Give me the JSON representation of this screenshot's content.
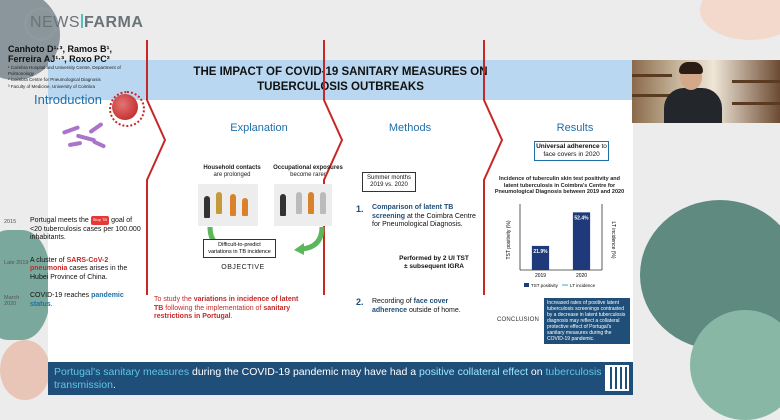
{
  "logo": {
    "part1": "NEWS",
    "part2": "FARMA"
  },
  "poster": {
    "title_line1": "THE IMPACT OF COVID-19 SANITARY MEASURES ON",
    "title_line2": "TUBERCULOSIS OUTBREAKS",
    "authors": {
      "line1": "Canhoto D¹·³, Ramos B¹,",
      "line2": "Ferreira AJ¹·³, Roxo PC²",
      "aff1": "¹ Coimbra Hospital and University Centre, Department of Pulmonology",
      "aff2": "² Coimbra Centre for Pneumological Diagnosis",
      "aff3": "³ Faculty of Medicine, University of Coimbra"
    },
    "introduction": {
      "title": "Introduction",
      "items": [
        {
          "year": "2015",
          "pre": "Portugal meets the",
          "badge": "Stop TB",
          "post": "goal of <20 tuberculosis cases per 100.000 inhabitants."
        },
        {
          "year": "Late 2019",
          "pre": "A cluster of",
          "highlight": "SARS-CoV-2 pneumonia",
          "post": "cases arises in the Hubei Province of China."
        },
        {
          "year": "March 2020",
          "pre": "COVID-19 reaches",
          "highlight": "pandemic status",
          "post": "."
        }
      ]
    },
    "explanation": {
      "title": "Explanation",
      "label_left_1": "Household contacts",
      "label_left_2": "are prolonged",
      "label_right_1": "Occupational exposures",
      "label_right_2": "become rarer",
      "diff_box_1": "Difficult-to-predict",
      "diff_box_2": "variations in TB incidence",
      "objective": "OBJECTIVE",
      "obj_pre": "To study the ",
      "obj_hl1": "variations in incidence of latent TB",
      "obj_mid": " following the implementation of ",
      "obj_hl2": "sanitary restrictions in Portugal",
      "obj_end": "."
    },
    "methods": {
      "title": "Methods",
      "box_1": "Summer months",
      "box_2": "2019 vs. 2020",
      "item1_num": "1.",
      "item1_hl": "Comparison of latent TB screening",
      "item1_rest": " at the Coimbra Centre for Pneumological Diagnosis.",
      "item1_sub_1": "Performed by 2 UI TST",
      "item1_sub_2": "± subsequent IGRA",
      "item2_num": "2.",
      "item2_pre": "Recording of ",
      "item2_hl": "face cover adherence",
      "item2_rest": " outside of home."
    },
    "results": {
      "title": "Results",
      "box_hl": "Universal adherence",
      "box_rest": " to face covers in 2020",
      "caption": "Incidence of tuberculin skin test positivity and latent tuberculosis in Coimbra's Centre for Pneumological Diagnosis between 2019 and 2020",
      "conclusion_label": "CONCLUSION",
      "conclusion_text": "Increased rates of positive latent tuberculosis screenings contrasted by a decrease in latent tuberculosis diagnosis may reflect a collateral protective effect of Portugal's sanitary measures during the COVID-19 pandemic."
    },
    "bottom": {
      "s1": "Portugal's sanitary measures",
      "s2": " during the COVID-19 pandemic may have had a ",
      "s3": "positive collateral effect",
      "s4": " on ",
      "s5": "tuberculosis transmission",
      "s6": "."
    }
  },
  "chart_data": {
    "type": "bar",
    "categories": [
      "2019",
      "2020"
    ],
    "series": [
      {
        "name": "TST positivity",
        "values": [
          21.9,
          52.4
        ]
      },
      {
        "name": "LT incidence",
        "values": [
          null,
          null
        ]
      }
    ],
    "data_labels": [
      "21.9%",
      "52.4%"
    ],
    "ylabel_left": "TST positivity (%)",
    "ylabel_right": "LT incidence (%)",
    "ylim": [
      0,
      60
    ],
    "colors": {
      "bar": "#1f3a7a",
      "line": "#3aa7d8"
    },
    "legend_1": "TST positivity",
    "legend_2": "LT incidence",
    "legend_position": "bottom"
  }
}
